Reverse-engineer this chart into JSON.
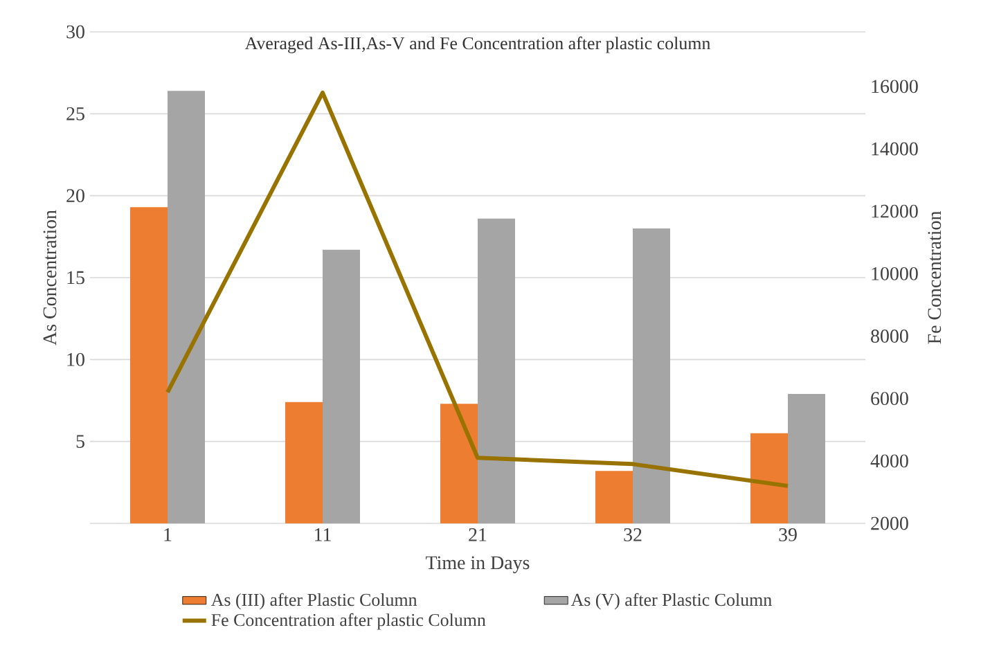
{
  "chart_data": {
    "type": "bar",
    "title": "Averaged As-III,As-V and Fe Concentration after plastic column",
    "xlabel": "Time in Days",
    "ylabel": "As Concentration",
    "y2label": "Fe Concentration",
    "categories": [
      "1",
      "11",
      "21",
      "32",
      "39"
    ],
    "series": [
      {
        "name": "As (III) after Plastic Column",
        "color": "#ed7d31",
        "values": [
          19.3,
          7.4,
          7.3,
          3.2,
          5.5
        ]
      },
      {
        "name": "As (V) after Plastic Column",
        "color": "#a5a5a5",
        "values": [
          26.4,
          16.7,
          18.6,
          18.0,
          7.9
        ]
      },
      {
        "name": "Fe Concentration after plastic Column",
        "type": "line",
        "axis": "y2",
        "color": "#997300",
        "values": [
          6200,
          15800,
          4100,
          3900,
          3200
        ]
      }
    ],
    "ylim": [
      0,
      30
    ],
    "yticks": [
      {
        "value": 0,
        "label": null
      },
      5,
      10,
      15,
      20,
      25,
      30
    ],
    "y2lim": [
      2000,
      17750
    ],
    "y2ticks": [
      2000,
      4000,
      6000,
      8000,
      10000,
      12000,
      14000,
      16000
    ],
    "grid": "y",
    "legend": "bottom"
  }
}
